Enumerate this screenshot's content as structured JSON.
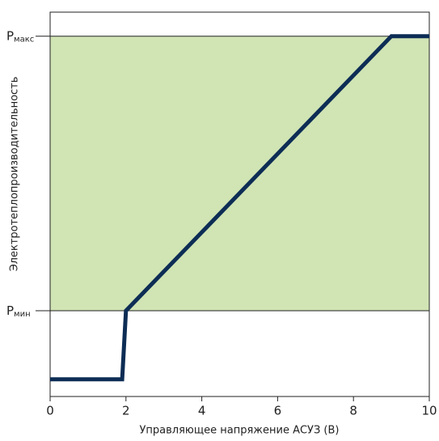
{
  "chart_data": {
    "type": "line",
    "xlabel": "Управляющее напряжение АСУЗ (В)",
    "ylabel": "Электротеплопроизводительность",
    "x": [
      0,
      1.9,
      2,
      9,
      10
    ],
    "series": [
      {
        "color": "#0d2d55",
        "values": [
          0,
          0,
          1,
          5,
          5
        ]
      }
    ],
    "xlim": [
      0,
      10
    ],
    "xticks": [
      0,
      2,
      4,
      6,
      8,
      10
    ],
    "ylim": [
      -0.25,
      5.35
    ],
    "yticks": [
      {
        "value": 1,
        "label": "Pмин"
      },
      {
        "value": 5,
        "label": "Pмакс"
      }
    ],
    "band_color": "#d0e4b4"
  }
}
